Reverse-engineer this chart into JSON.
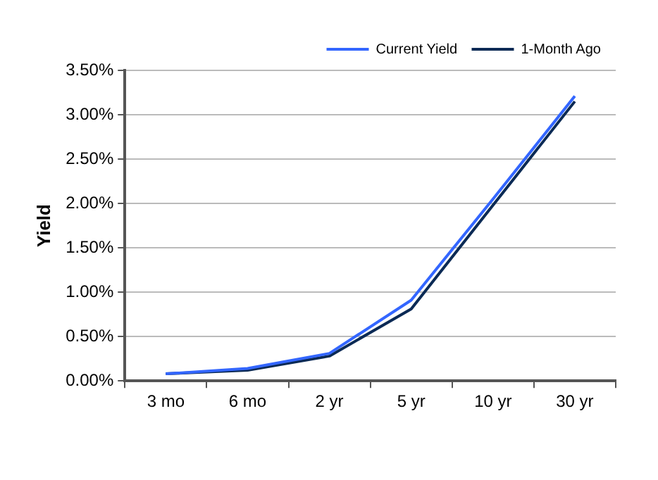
{
  "chart_data": {
    "type": "line",
    "ylabel": "Yield",
    "categories": [
      "3 mo",
      "6 mo",
      "2 yr",
      "5 yr",
      "10 yr",
      "30 yr"
    ],
    "series": [
      {
        "name": "Current Yield",
        "color": "#3366ff",
        "values": [
          0.08,
          0.14,
          0.31,
          0.91,
          2.05,
          3.21
        ]
      },
      {
        "name": "1-Month Ago",
        "color": "#0b2a55",
        "values": [
          0.08,
          0.12,
          0.28,
          0.81,
          1.98,
          3.15
        ]
      }
    ],
    "ylim": [
      0,
      3.5
    ],
    "yticks": [
      {
        "value": 0,
        "label": "0.00%"
      },
      {
        "value": 0.5,
        "label": "0.50%"
      },
      {
        "value": 1,
        "label": "1.00%"
      },
      {
        "value": 1.5,
        "label": "1.50%"
      },
      {
        "value": 2,
        "label": "2.00%"
      },
      {
        "value": 2.5,
        "label": "2.50%"
      },
      {
        "value": 3,
        "label": "3.00%"
      },
      {
        "value": 3.5,
        "label": "3.50%"
      }
    ],
    "grid": "y",
    "legend": "top right",
    "marker": "none",
    "line_style": "solid"
  }
}
